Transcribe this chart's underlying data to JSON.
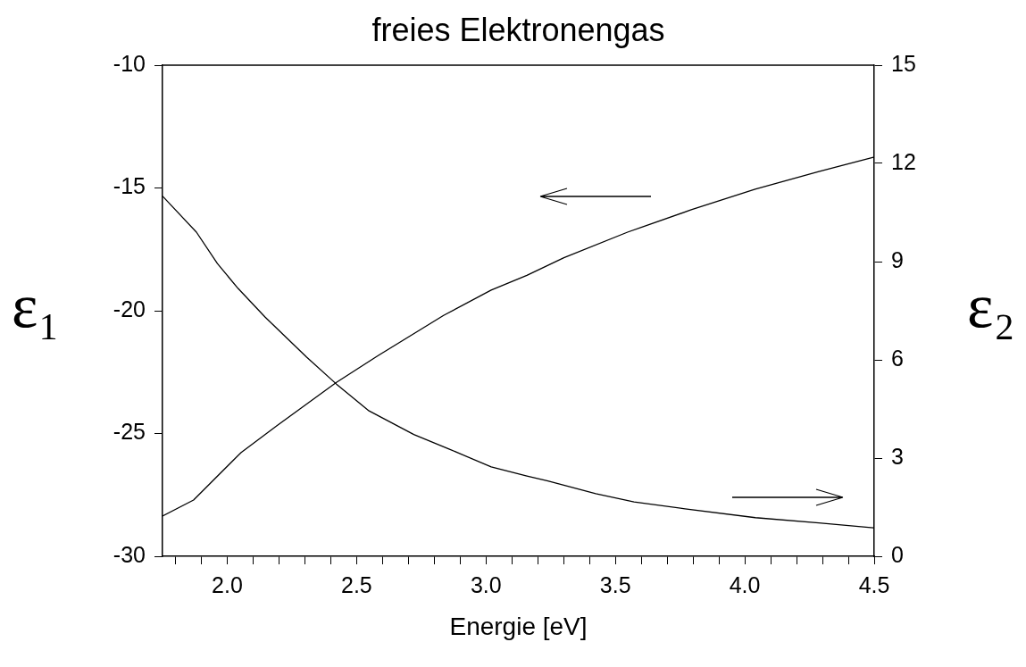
{
  "chart_data": {
    "type": "line",
    "title": "freies Elektronengas",
    "xlabel": "Energie [eV]",
    "ylabel": "ε₁",
    "y2label": "ε₂",
    "xlim": [
      1.75,
      4.5
    ],
    "xticks": [
      {
        "value": 1.8,
        "label": null
      },
      {
        "value": 1.9,
        "label": null
      },
      {
        "value": 2.0,
        "label": "2.0"
      },
      {
        "value": 2.1,
        "label": null
      },
      {
        "value": 2.2,
        "label": null
      },
      {
        "value": 2.3,
        "label": null
      },
      {
        "value": 2.4,
        "label": null
      },
      {
        "value": 2.5,
        "label": "2.5"
      },
      {
        "value": 2.6,
        "label": null
      },
      {
        "value": 2.7,
        "label": null
      },
      {
        "value": 2.8,
        "label": null
      },
      {
        "value": 2.9,
        "label": null
      },
      {
        "value": 3.0,
        "label": "3.0"
      },
      {
        "value": 3.1,
        "label": null
      },
      {
        "value": 3.2,
        "label": null
      },
      {
        "value": 3.3,
        "label": null
      },
      {
        "value": 3.4,
        "label": null
      },
      {
        "value": 3.5,
        "label": "3.5"
      },
      {
        "value": 3.6,
        "label": null
      },
      {
        "value": 3.7,
        "label": null
      },
      {
        "value": 3.8,
        "label": null
      },
      {
        "value": 3.9,
        "label": null
      },
      {
        "value": 4.0,
        "label": "4.0"
      },
      {
        "value": 4.1,
        "label": null
      },
      {
        "value": 4.2,
        "label": null
      },
      {
        "value": 4.3,
        "label": null
      },
      {
        "value": 4.4,
        "label": null
      },
      {
        "value": 4.5,
        "label": "4.5"
      }
    ],
    "ylim": [
      -30,
      -10
    ],
    "yticks": [
      -30,
      -25,
      -20,
      -15,
      -10
    ],
    "y2lim": [
      0,
      15
    ],
    "y2ticks": [
      0,
      3,
      6,
      9,
      12,
      15
    ],
    "grid": false,
    "legend": false,
    "marker": "none",
    "line_style": "solid",
    "series": [
      {
        "color": "#000000",
        "x": [
          1.75,
          1.87,
          2.054,
          2.192,
          2.422,
          2.583,
          2.836,
          3.02,
          3.158,
          3.301,
          3.547,
          3.793,
          4.04,
          4.286,
          4.497
        ],
        "values": [
          -28.36,
          -27.71,
          -25.77,
          -24.68,
          -22.92,
          -21.83,
          -20.19,
          -19.16,
          -18.56,
          -17.84,
          -16.8,
          -15.89,
          -15.05,
          -14.33,
          -13.75
        ]
      },
      {
        "color": "#000000",
        "axis": "y2",
        "x": [
          1.75,
          1.881,
          1.962,
          2.042,
          2.146,
          2.307,
          2.422,
          2.548,
          2.721,
          2.859,
          3.02,
          3.158,
          3.239,
          3.424,
          3.572,
          3.769,
          4.041,
          4.286,
          4.497
        ],
        "values": [
          11.0,
          9.9,
          8.94,
          8.18,
          7.31,
          6.08,
          5.26,
          4.44,
          3.72,
          3.27,
          2.73,
          2.45,
          2.3,
          1.91,
          1.66,
          1.45,
          1.18,
          1.02,
          0.87
        ]
      }
    ]
  }
}
